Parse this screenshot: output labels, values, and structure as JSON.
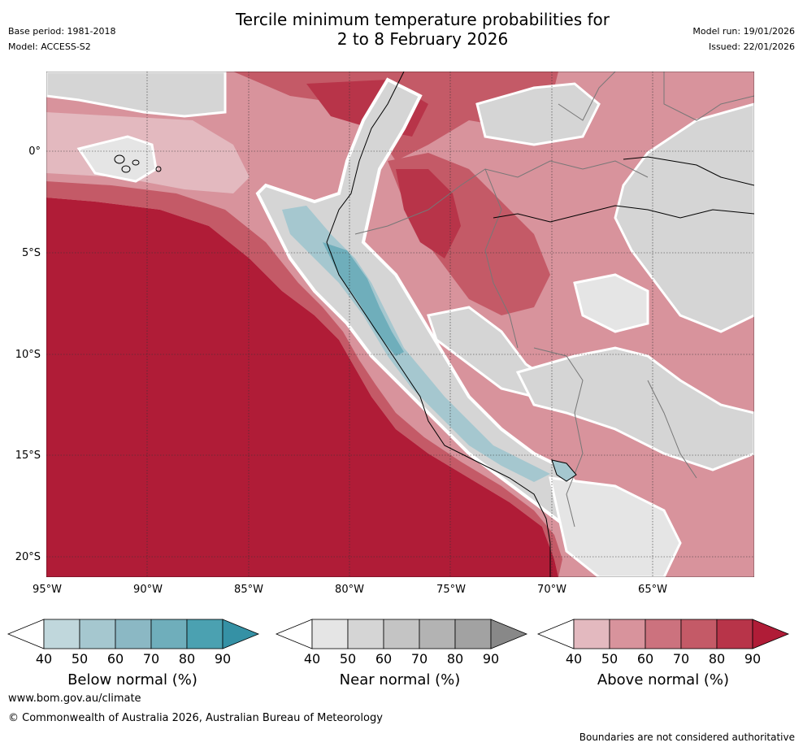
{
  "header": {
    "title_line1": "Tercile minimum temperature probabilities for",
    "title_line2": "2 to 8 February 2026",
    "base_period": "Base period: 1981-2018",
    "model": "Model: ACCESS-S2",
    "model_run": "Model run: 19/01/2026",
    "issued": "Issued: 22/01/2026"
  },
  "axes": {
    "lat_labels": [
      "0°",
      "5°S",
      "10°S",
      "15°S",
      "20°S"
    ],
    "lon_labels": [
      "95°W",
      "90°W",
      "85°W",
      "80°W",
      "75°W",
      "70°W",
      "65°W"
    ]
  },
  "legends": {
    "below": {
      "label": "Below normal (%)",
      "ticks": [
        "40",
        "50",
        "60",
        "70",
        "80",
        "90"
      ],
      "colors": [
        "#c0d7dc",
        "#a5c7cf",
        "#8bb8c4",
        "#6faebb",
        "#4ba1b1",
        "#3591a5"
      ]
    },
    "near": {
      "label": "Near normal (%)",
      "ticks": [
        "40",
        "50",
        "60",
        "70",
        "80",
        "90"
      ],
      "colors": [
        "#e5e5e5",
        "#d5d5d5",
        "#c4c4c4",
        "#b3b3b3",
        "#a2a2a2",
        "#888888"
      ]
    },
    "above": {
      "label": "Above normal (%)",
      "ticks": [
        "40",
        "50",
        "60",
        "70",
        "80",
        "90"
      ],
      "colors": [
        "#e3b9bf",
        "#d8939c",
        "#cc727e",
        "#c45a67",
        "#b83449",
        "#b01c37"
      ]
    }
  },
  "footer": {
    "website": "www.bom.gov.au/climate",
    "copyright": "© Commonwealth of Australia 2026, Australian Bureau of Meteorology",
    "disclaimer": "Boundaries are not considered authoritative"
  }
}
